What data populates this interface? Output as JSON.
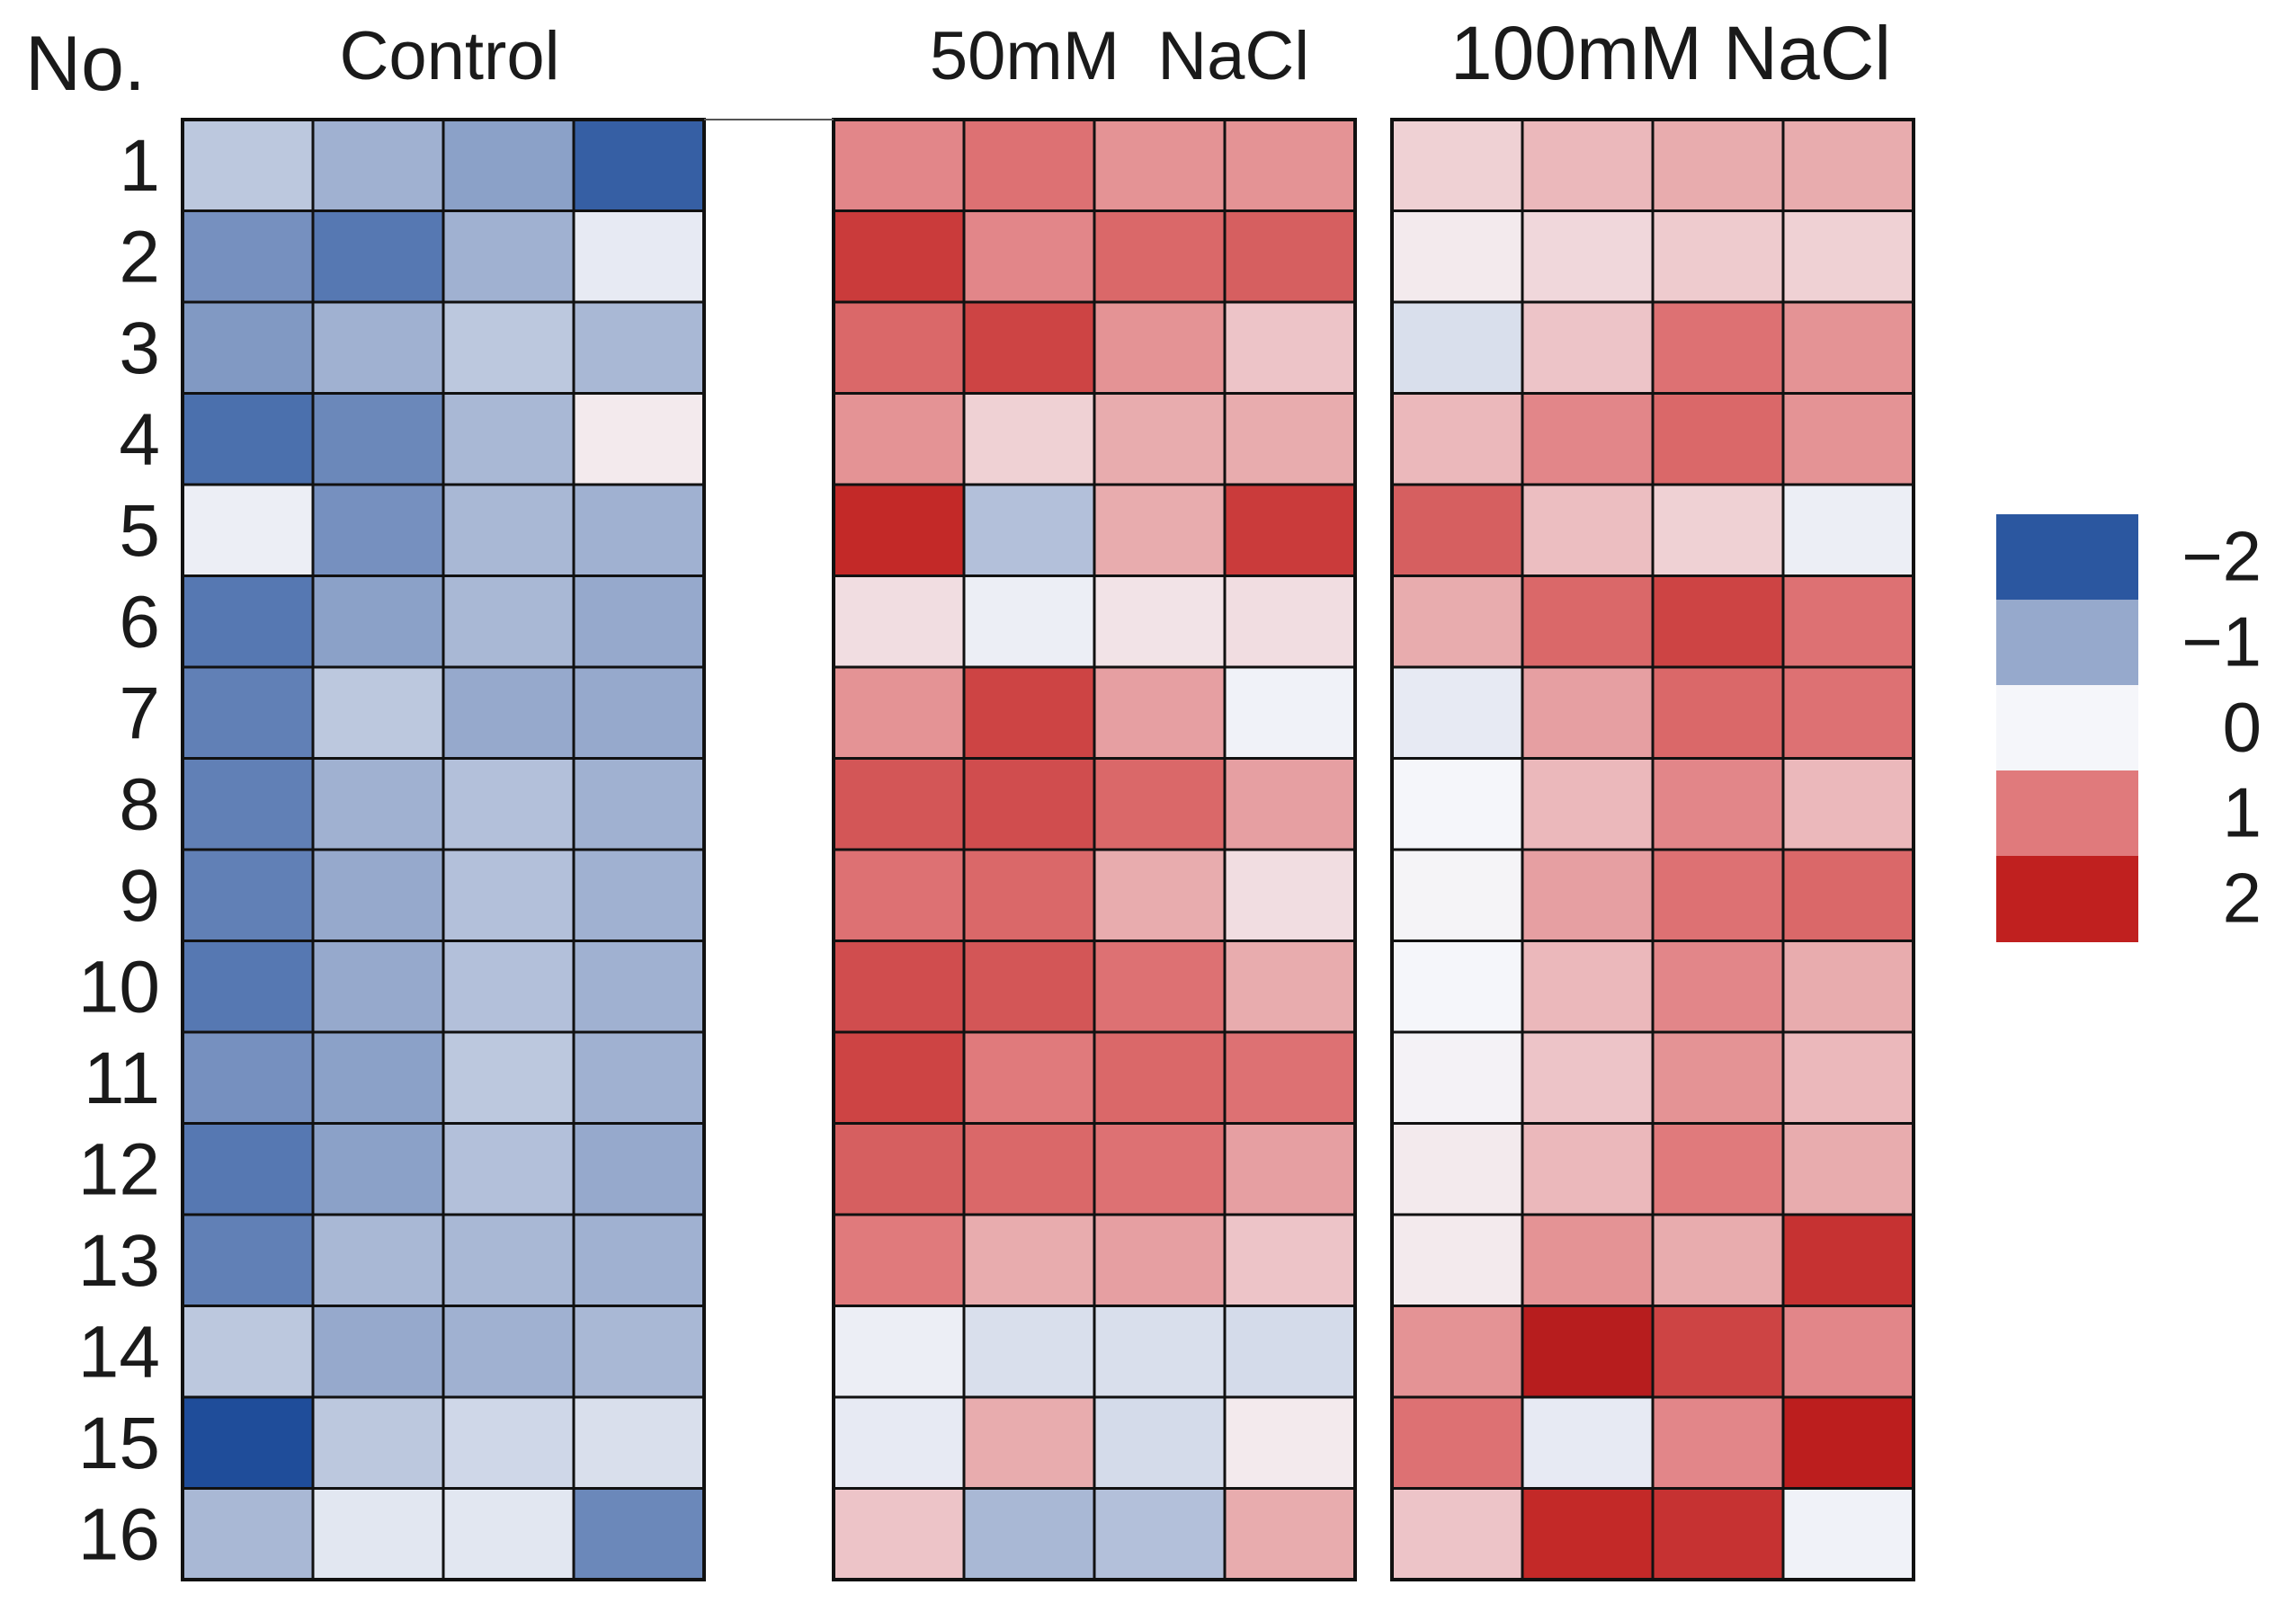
{
  "chart_data": {
    "type": "heatmap",
    "row_header": "No.",
    "rows": [
      "1",
      "2",
      "3",
      "4",
      "5",
      "6",
      "7",
      "8",
      "9",
      "10",
      "11",
      "12",
      "13",
      "14",
      "15",
      "16"
    ],
    "groups": [
      {
        "name": "Control",
        "values": [
          [
            -0.6,
            -0.9,
            -1.1,
            -1.9
          ],
          [
            -1.3,
            -1.6,
            -0.9,
            -0.15
          ],
          [
            -1.2,
            -0.9,
            -0.6,
            -0.8
          ],
          [
            -1.7,
            -1.4,
            -0.8,
            0.1
          ],
          [
            -0.1,
            -1.3,
            -0.8,
            -0.9
          ],
          [
            -1.6,
            -1.1,
            -0.8,
            -1.0
          ],
          [
            -1.5,
            -0.6,
            -1.0,
            -1.0
          ],
          [
            -1.5,
            -0.9,
            -0.7,
            -0.9
          ],
          [
            -1.5,
            -1.0,
            -0.7,
            -0.9
          ],
          [
            -1.6,
            -1.0,
            -0.7,
            -0.9
          ],
          [
            -1.3,
            -1.1,
            -0.6,
            -0.9
          ],
          [
            -1.6,
            -1.1,
            -0.7,
            -1.0
          ],
          [
            -1.5,
            -0.8,
            -0.8,
            -0.9
          ],
          [
            -0.6,
            -1.0,
            -0.9,
            -0.8
          ],
          [
            -2.2,
            -0.6,
            -0.4,
            -0.3
          ],
          [
            -0.8,
            -0.2,
            -0.2,
            -1.4
          ]
        ]
      },
      {
        "name": "50mM  NaCl",
        "values": [
          [
            0.9,
            1.1,
            0.8,
            0.8
          ],
          [
            1.7,
            0.9,
            1.2,
            1.3
          ],
          [
            1.2,
            1.6,
            0.8,
            0.4
          ],
          [
            0.8,
            0.3,
            0.6,
            0.6
          ],
          [
            1.9,
            -0.7,
            0.6,
            1.7
          ],
          [
            0.2,
            -0.1,
            0.15,
            0.2
          ],
          [
            0.8,
            1.6,
            0.7,
            -0.05
          ],
          [
            1.4,
            1.5,
            1.2,
            0.7
          ],
          [
            1.1,
            1.2,
            0.6,
            0.2
          ],
          [
            1.5,
            1.4,
            1.1,
            0.6
          ],
          [
            1.6,
            1.0,
            1.2,
            1.1
          ],
          [
            1.3,
            1.2,
            1.1,
            0.7
          ],
          [
            1.0,
            0.6,
            0.7,
            0.4
          ],
          [
            -0.1,
            -0.3,
            -0.3,
            -0.35
          ],
          [
            -0.15,
            0.6,
            -0.35,
            0.1
          ],
          [
            0.4,
            -0.8,
            -0.7,
            0.6
          ]
        ]
      },
      {
        "name": "100mM NaCl",
        "values": [
          [
            0.3,
            0.5,
            0.6,
            0.6
          ],
          [
            0.1,
            0.25,
            0.35,
            0.3
          ],
          [
            -0.3,
            0.4,
            1.1,
            0.8
          ],
          [
            0.5,
            0.9,
            1.2,
            0.8
          ],
          [
            1.3,
            0.45,
            0.3,
            -0.1
          ],
          [
            0.6,
            1.2,
            1.6,
            1.1
          ],
          [
            -0.15,
            0.7,
            1.2,
            1.1
          ],
          [
            0.0,
            0.5,
            0.9,
            0.5
          ],
          [
            0.02,
            0.7,
            1.1,
            1.2
          ],
          [
            0.0,
            0.5,
            0.9,
            0.6
          ],
          [
            0.03,
            0.4,
            0.8,
            0.5
          ],
          [
            0.1,
            0.5,
            1.0,
            0.6
          ],
          [
            0.1,
            0.8,
            0.6,
            1.8
          ],
          [
            0.8,
            2.2,
            1.6,
            0.9
          ],
          [
            1.1,
            -0.15,
            0.9,
            2.1
          ],
          [
            0.4,
            1.9,
            1.8,
            -0.05
          ]
        ]
      }
    ],
    "colorbar": {
      "ticks": [
        "−2",
        "−1",
        "0",
        "1",
        "2"
      ],
      "tick_values": [
        -2,
        -1,
        0,
        1,
        2
      ],
      "stops": [
        {
          "value": -2,
          "color": "#2b57a0"
        },
        {
          "value": -1,
          "color": "#96a9cc"
        },
        {
          "value": 0,
          "color": "#f5f6fa"
        },
        {
          "value": 1,
          "color": "#e07a7c"
        },
        {
          "value": 2,
          "color": "#c0201f"
        }
      ],
      "position": "right"
    },
    "range": [
      -2.2,
      2.2
    ]
  }
}
